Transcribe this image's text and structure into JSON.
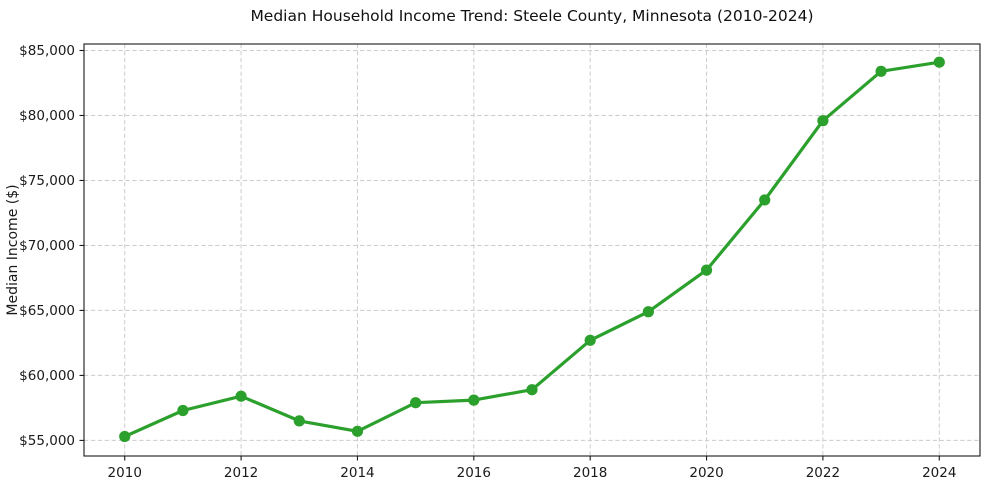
{
  "chart_data": {
    "type": "line",
    "title": "Median Household Income Trend: Steele County, Minnesota (2010-2024)",
    "xlabel": "",
    "ylabel": "Median Income ($)",
    "x": [
      2010,
      2011,
      2012,
      2013,
      2014,
      2015,
      2016,
      2017,
      2018,
      2019,
      2020,
      2021,
      2022,
      2023,
      2024
    ],
    "series": [
      {
        "name": "Median Household Income",
        "values": [
          55300,
          57300,
          58400,
          56500,
          55700,
          57900,
          58100,
          58900,
          62700,
          64900,
          68100,
          73500,
          79600,
          83400,
          84100
        ]
      }
    ],
    "xlim": [
      2009.3,
      2024.7
    ],
    "ylim": [
      53800,
      85500
    ],
    "x_ticks": {
      "positions": [
        2010,
        2012,
        2014,
        2016,
        2018,
        2020,
        2022,
        2024
      ],
      "labels": [
        "2010",
        "2012",
        "2014",
        "2016",
        "2018",
        "2020",
        "2022",
        "2024"
      ]
    },
    "y_ticks": {
      "positions": [
        55000,
        60000,
        65000,
        70000,
        75000,
        80000,
        85000
      ],
      "labels": [
        "$55,000",
        "$60,000",
        "$65,000",
        "$70,000",
        "$75,000",
        "$80,000",
        "$85,000"
      ]
    },
    "legend": {
      "show": false
    },
    "grid": {
      "show": true,
      "style": "dashed"
    },
    "colors": {
      "line": "#2ca02c",
      "marker": "#2ca02c",
      "grid": "#cccccc",
      "spine": "#1a1a1a",
      "tick_label": "#1a1a1a",
      "title": "#111111",
      "background": "#ffffff"
    }
  }
}
